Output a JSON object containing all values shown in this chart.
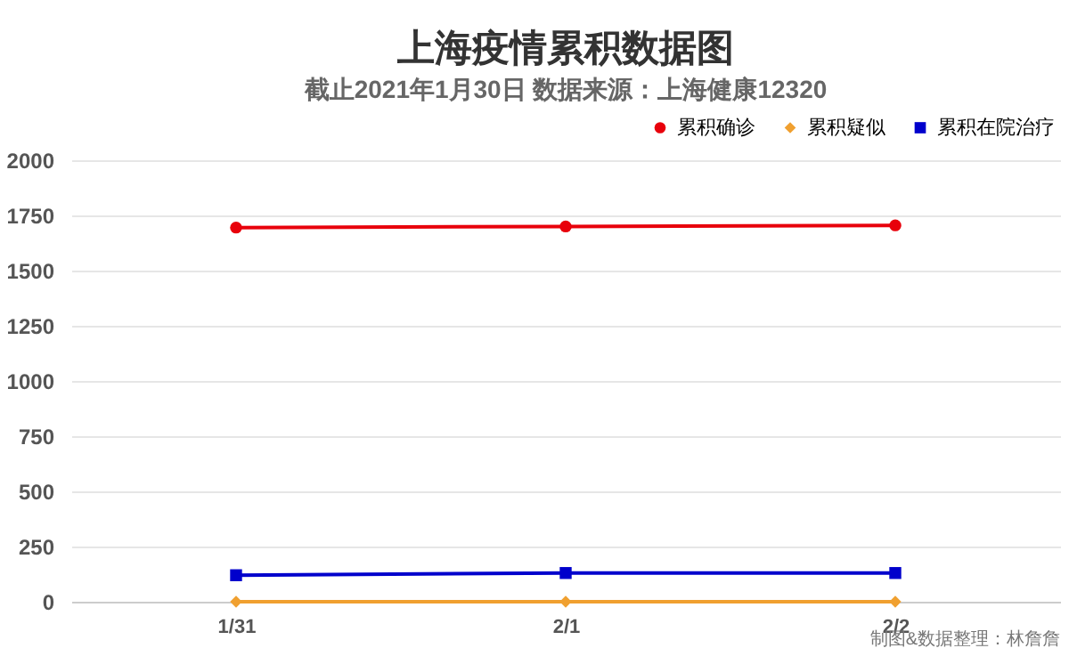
{
  "chart_data": {
    "type": "line",
    "title": "上海疫情累积数据图",
    "subtitle": "截止2021年1月30日 数据来源：上海健康12320",
    "categories": [
      "1/31",
      "2/1",
      "2/2"
    ],
    "series": [
      {
        "name": "累积确诊",
        "color": "#e8000b",
        "marker": "circle",
        "values": [
          1695,
          1700,
          1705
        ]
      },
      {
        "name": "累积疑似",
        "color": "#f0a030",
        "marker": "diamond",
        "values": [
          0,
          0,
          0
        ]
      },
      {
        "name": "累积在院治疗",
        "color": "#0000cc",
        "marker": "square",
        "values": [
          120,
          130,
          130
        ]
      }
    ],
    "ylim": [
      0,
      2000
    ],
    "yticks": [
      0,
      250,
      500,
      750,
      1000,
      1250,
      1500,
      1750,
      2000
    ],
    "grid": "y",
    "legend": "top right",
    "line_style": "solid",
    "annotations": [
      "制图&数据整理：林詹詹"
    ]
  }
}
